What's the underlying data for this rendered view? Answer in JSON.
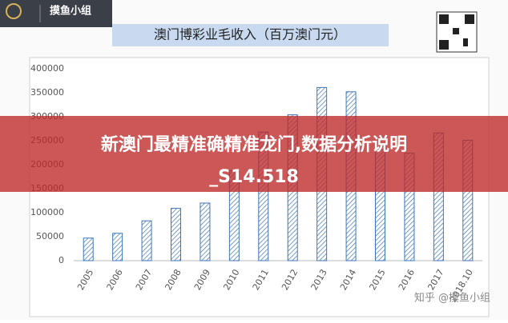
{
  "chart_data": {
    "type": "bar",
    "title": "澳门博彩业毛收入（百万澳门元）",
    "categories": [
      "2005",
      "2006",
      "2007",
      "2008",
      "2009",
      "2010",
      "2011",
      "2012",
      "2013",
      "2014",
      "2015",
      "2016",
      "2017",
      "2018.10"
    ],
    "values": [
      47000,
      57000,
      83000,
      109000,
      120000,
      188000,
      268000,
      304000,
      361000,
      352000,
      231000,
      224000,
      266000,
      251000
    ],
    "color": "#3f76b8",
    "ylim": [
      0,
      400000
    ],
    "yticks": [
      0,
      50000,
      100000,
      150000,
      200000,
      250000,
      300000,
      350000,
      400000
    ],
    "grid": false
  },
  "logo": {
    "name": "摸鱼小组"
  },
  "banner": {
    "headline": "新澳门最精准确精准龙门,数据分析说明",
    "code": "_S14.518"
  },
  "watermark": "知乎 @摸鱼小组"
}
